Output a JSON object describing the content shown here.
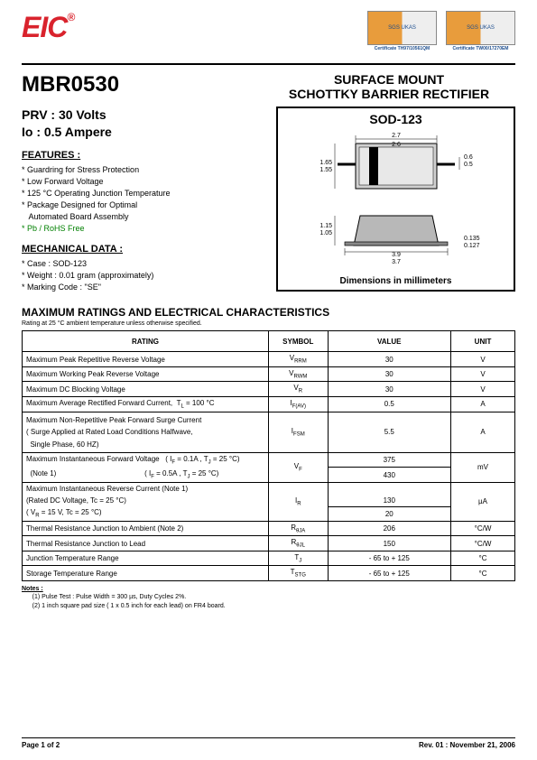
{
  "logo": {
    "text": "EIC",
    "reg": "®",
    "color": "#d9232d"
  },
  "certs": [
    {
      "label": "Certificate TH97/10561QM"
    },
    {
      "label": "Certificate TW00/17270EM"
    }
  ],
  "part_number": "MBR0530",
  "product_title_l1": "SURFACE MOUNT",
  "product_title_l2": "SCHOTTKY BARRIER RECTIFIER",
  "prv": "PRV :  30 Volts",
  "io": "Io :  0.5 Ampere",
  "features_label": "FEATURES :",
  "features": [
    "Guardring for Stress Protection",
    "Low Forward Voltage",
    "125 °C Operating Junction Temperature",
    "Package Designed for Optimal",
    "  Automated Board Assembly"
  ],
  "feature_green": "Pb / RoHS Free",
  "mech_label": "MECHANICAL  DATA :",
  "mech": [
    "Case : SOD-123",
    "Weight : 0.01  gram (approximately)",
    "Marking Code : \"SE\""
  ],
  "package": {
    "name": "SOD-123",
    "dims_label": "Dimensions in millimeters",
    "top": {
      "w_outer": "2.7",
      "w_inner": "2.6",
      "h_outer": "1.65",
      "h_inner": "1.55",
      "lead_h_outer": "0.6",
      "lead_h_inner": "0.5"
    },
    "side": {
      "h_outer": "1.15",
      "h_inner": "1.05",
      "lead_t_outer": "0.135",
      "lead_t_inner": "0.127",
      "w_outer": "3.9",
      "w_inner": "3.7"
    }
  },
  "ratings_header": "MAXIMUM  RATINGS  AND  ELECTRICAL  CHARACTERISTICS",
  "ratings_sub": "Rating at  25 °C ambient temperature unless otherwise specified.",
  "table": {
    "headers": [
      "RATING",
      "SYMBOL",
      "VALUE",
      "UNIT"
    ],
    "rows": [
      {
        "rating": "Maximum Peak Repetitive Reverse Voltage",
        "symbol": "V<span class=\"sub\">RRM</span>",
        "value": "30",
        "unit": "V"
      },
      {
        "rating": "Maximum Working Peak Reverse Voltage",
        "symbol": "V<span class=\"sub\">RWM</span>",
        "value": "30",
        "unit": "V"
      },
      {
        "rating": "Maximum DC Blocking Voltage",
        "symbol": "V<span class=\"sub\">R</span>",
        "value": "30",
        "unit": "V"
      },
      {
        "rating": "Maximum Average Rectified Forward Current,&nbsp;&nbsp;T<span class=\"sub\">L</span> = 100 °C",
        "symbol": "I<span class=\"sub\">F(AV)</span>",
        "value": "0.5",
        "unit": "A"
      }
    ],
    "ifsm": {
      "rating": "Maximum Non-Repetitive Peak Forward Surge Current<br>( Surge Applied at Rated Load Conditions Halfwave,<br>&nbsp;&nbsp;Single Phase, 60 HZ)",
      "symbol": "I<span class=\"sub\">FSM</span>",
      "value": "5.5",
      "unit": "A"
    },
    "vf": {
      "r1": "Maximum Instantaneous Forward Voltage&nbsp;&nbsp;&nbsp;( I<span class=\"sub\">F</span> = 0.1A , T<span class=\"sub\">J</span> = 25 °C)",
      "r2": "&nbsp;&nbsp;(Note 1)&nbsp;&nbsp;&nbsp;&nbsp;&nbsp;&nbsp;&nbsp;&nbsp;&nbsp;&nbsp;&nbsp;&nbsp;&nbsp;&nbsp;&nbsp;&nbsp;&nbsp;&nbsp;&nbsp;&nbsp;&nbsp;&nbsp;&nbsp;&nbsp;&nbsp;&nbsp;&nbsp;&nbsp;&nbsp;&nbsp;&nbsp;&nbsp;&nbsp;&nbsp;&nbsp;&nbsp;&nbsp;&nbsp;&nbsp;&nbsp;&nbsp;&nbsp;&nbsp;&nbsp;( I<span class=\"sub\">F</span> = 0.5A , T<span class=\"sub\">J</span> = 25 °C)",
      "symbol": "V<span class=\"sub\">F</span>",
      "v1": "375",
      "v2": "430",
      "unit": "mV"
    },
    "ir": {
      "r1": "Maximum Instantaneous Reverse Current (Note 1)",
      "r2": "(Rated DC Voltage, Tc = 25 °C)",
      "r3": "( V<span class=\"sub\">R</span> = 15 V, Tc = 25 °C)",
      "symbol": "I<span class=\"sub\">R</span>",
      "v1": "130",
      "v2": "20",
      "unit": "µA"
    },
    "tail": [
      {
        "rating": "Thermal Resistance  Junction to Ambient (Note 2)",
        "symbol": "R<span class=\"sub\">θJA</span>",
        "value": "206",
        "unit": "°C/W"
      },
      {
        "rating": "Thermal Resistance  Junction to Lead",
        "symbol": "R<span class=\"sub\">θJL</span>",
        "value": "150",
        "unit": "°C/W"
      },
      {
        "rating": "Junction Temperature Range",
        "symbol": "T<span class=\"sub\">J</span>",
        "value": "- 65 to + 125",
        "unit": "°C"
      },
      {
        "rating": "Storage Temperature Range",
        "symbol": "T<span class=\"sub\">STG</span>",
        "value": "- 65 to + 125",
        "unit": "°C"
      }
    ]
  },
  "notes_label": "Notes :",
  "notes": [
    "(1) Pulse Test : Pulse Width = 300 µs, Duty Cycle≤ 2%.",
    "(2) 1 inch square pad size ( 1 x 0.5 inch for each lead) on FR4 board."
  ],
  "footer": {
    "left": "Page 1 of 2",
    "right": "Rev. 01 : November 21, 2006"
  }
}
